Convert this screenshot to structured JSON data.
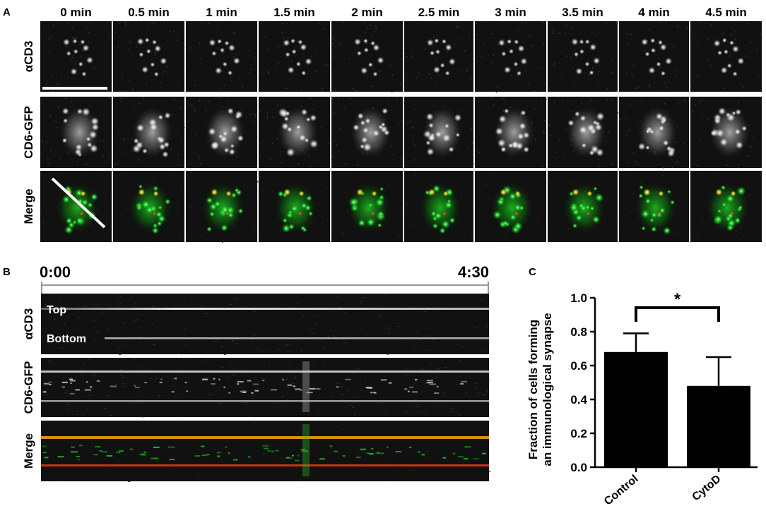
{
  "panels": {
    "a": {
      "letter": "A",
      "time_labels": [
        "0 min",
        "0.5 min",
        "1 min",
        "1.5 min",
        "2 min",
        "2.5 min",
        "3 min",
        "3.5 min",
        "4 min",
        "4.5 min"
      ],
      "row_labels": [
        "αCD3",
        "CD6-GFP",
        "Merge"
      ]
    },
    "b": {
      "letter": "B",
      "time_start": "0:00",
      "time_end": "4:30",
      "row_labels": [
        "αCD3",
        "CD6-GFP",
        "Merge"
      ],
      "annotations": {
        "top": "Top",
        "bottom": "Bottom"
      }
    },
    "c": {
      "letter": "C"
    }
  },
  "colors": {
    "background": "#ffffff",
    "micrograph_bg": "#111111",
    "gfp": "#19c81e",
    "red": "#ff3c1e",
    "bar": "#000000"
  },
  "chart_data": {
    "type": "bar",
    "categories": [
      "Control",
      "CytoD"
    ],
    "values": [
      0.68,
      0.48
    ],
    "errors": [
      0.11,
      0.17
    ],
    "ylabel": "Fraction of cells forming an immunological synapse",
    "ylim": [
      0,
      1.0
    ],
    "yticks": [
      "0.0",
      "0.2",
      "0.4",
      "0.6",
      "0.8",
      "1.0"
    ],
    "significance": "*",
    "grid": false
  }
}
